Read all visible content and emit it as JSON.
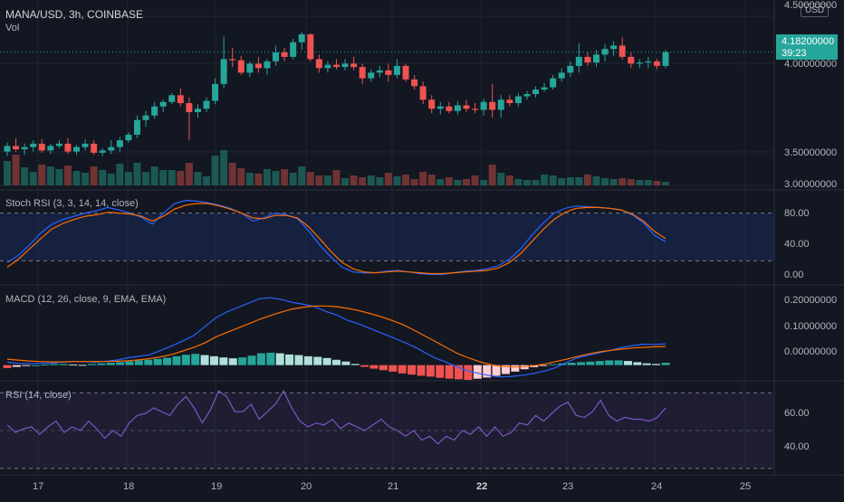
{
  "header": {
    "title": "MANA/USD, 3h, COINBASE",
    "vol_label": "Vol",
    "currency": "USD"
  },
  "price_label": {
    "value": "4.18200000",
    "countdown": "39:23"
  },
  "colors": {
    "background": "#131722",
    "up": "#26a69a",
    "down": "#ef5350",
    "stoch_k": "#2962ff",
    "stoch_d": "#ff6d00",
    "macd_line": "#2962ff",
    "signal_line": "#ff6d00",
    "rsi_line": "#7e57c2"
  },
  "panes": {
    "stoch": {
      "label": "Stoch RSI (3, 3, 14, 14, close)",
      "ticks": [
        "80.00",
        "40.00",
        "0.00"
      ]
    },
    "macd": {
      "label": "MACD (12, 26, close, 9, EMA, EMA)",
      "ticks": [
        "0.20000000",
        "0.10000000",
        "0.00000000"
      ]
    },
    "rsi": {
      "label": "RSI (14, close)",
      "ticks": [
        "60.00",
        "40.00"
      ]
    }
  },
  "price_axis": {
    "ticks": [
      "4.50000000",
      "4.00000000",
      "3.50000000",
      "3.00000000"
    ]
  },
  "x_axis": {
    "ticks": [
      "17",
      "18",
      "19",
      "20",
      "21",
      "22",
      "23",
      "24",
      "25"
    ],
    "bold": [
      "22"
    ]
  },
  "chart_data": [
    {
      "type": "candlestick",
      "ylim": [
        3.0,
        4.5
      ],
      "ohlc": [
        [
          3.3,
          3.38,
          3.26,
          3.35
        ],
        [
          3.35,
          3.42,
          3.3,
          3.32
        ],
        [
          3.32,
          3.37,
          3.27,
          3.34
        ],
        [
          3.34,
          3.4,
          3.3,
          3.37
        ],
        [
          3.37,
          3.41,
          3.29,
          3.31
        ],
        [
          3.31,
          3.37,
          3.28,
          3.35
        ],
        [
          3.35,
          3.4,
          3.33,
          3.37
        ],
        [
          3.37,
          3.42,
          3.28,
          3.3
        ],
        [
          3.3,
          3.36,
          3.27,
          3.34
        ],
        [
          3.34,
          3.41,
          3.31,
          3.37
        ],
        [
          3.37,
          3.4,
          3.27,
          3.29
        ],
        [
          3.29,
          3.33,
          3.26,
          3.31
        ],
        [
          3.31,
          3.4,
          3.28,
          3.34
        ],
        [
          3.34,
          3.43,
          3.3,
          3.4
        ],
        [
          3.4,
          3.47,
          3.38,
          3.45
        ],
        [
          3.45,
          3.62,
          3.42,
          3.58
        ],
        [
          3.58,
          3.66,
          3.52,
          3.62
        ],
        [
          3.62,
          3.74,
          3.59,
          3.7
        ],
        [
          3.7,
          3.76,
          3.65,
          3.74
        ],
        [
          3.74,
          3.82,
          3.72,
          3.8
        ],
        [
          3.8,
          3.86,
          3.7,
          3.73
        ],
        [
          3.73,
          3.78,
          3.4,
          3.65
        ],
        [
          3.65,
          3.72,
          3.6,
          3.68
        ],
        [
          3.68,
          3.78,
          3.65,
          3.75
        ],
        [
          3.75,
          3.95,
          3.72,
          3.9
        ],
        [
          3.9,
          4.32,
          3.86,
          4.12
        ],
        [
          4.12,
          4.22,
          4.05,
          4.11
        ],
        [
          4.11,
          4.15,
          3.98,
          4.0
        ],
        [
          4.0,
          4.1,
          3.96,
          4.08
        ],
        [
          4.08,
          4.14,
          4.0,
          4.04
        ],
        [
          4.04,
          4.12,
          3.98,
          4.1
        ],
        [
          4.1,
          4.24,
          4.06,
          4.18
        ],
        [
          4.18,
          4.22,
          4.1,
          4.14
        ],
        [
          4.14,
          4.3,
          4.12,
          4.27
        ],
        [
          4.27,
          4.36,
          4.2,
          4.34
        ],
        [
          4.34,
          4.35,
          4.1,
          4.12
        ],
        [
          4.12,
          4.16,
          4.0,
          4.04
        ],
        [
          4.04,
          4.1,
          4.0,
          4.07
        ],
        [
          4.07,
          4.12,
          4.03,
          4.05
        ],
        [
          4.05,
          4.12,
          4.02,
          4.08
        ],
        [
          4.08,
          4.14,
          4.02,
          4.05
        ],
        [
          4.05,
          4.08,
          3.9,
          3.95
        ],
        [
          3.95,
          4.03,
          3.92,
          4.0
        ],
        [
          4.0,
          4.06,
          3.96,
          4.02
        ],
        [
          4.02,
          4.08,
          3.92,
          3.98
        ],
        [
          3.98,
          4.12,
          3.95,
          4.06
        ],
        [
          4.06,
          4.08,
          3.92,
          3.94
        ],
        [
          3.94,
          3.98,
          3.85,
          3.88
        ],
        [
          3.88,
          3.92,
          3.72,
          3.76
        ],
        [
          3.76,
          3.8,
          3.64,
          3.68
        ],
        [
          3.68,
          3.74,
          3.63,
          3.7
        ],
        [
          3.7,
          3.74,
          3.64,
          3.66
        ],
        [
          3.66,
          3.75,
          3.63,
          3.71
        ],
        [
          3.71,
          3.76,
          3.65,
          3.68
        ],
        [
          3.68,
          3.73,
          3.64,
          3.67
        ],
        [
          3.67,
          3.77,
          3.62,
          3.74
        ],
        [
          3.74,
          3.9,
          3.6,
          3.67
        ],
        [
          3.67,
          3.8,
          3.6,
          3.76
        ],
        [
          3.76,
          3.8,
          3.7,
          3.73
        ],
        [
          3.73,
          3.82,
          3.7,
          3.79
        ],
        [
          3.79,
          3.84,
          3.76,
          3.81
        ],
        [
          3.81,
          3.88,
          3.78,
          3.85
        ],
        [
          3.85,
          3.91,
          3.83,
          3.87
        ],
        [
          3.87,
          3.98,
          3.85,
          3.95
        ],
        [
          3.95,
          4.04,
          3.92,
          4.0
        ],
        [
          4.0,
          4.1,
          3.96,
          4.06
        ],
        [
          4.06,
          4.26,
          4.0,
          4.14
        ],
        [
          4.14,
          4.18,
          4.06,
          4.09
        ],
        [
          4.09,
          4.2,
          4.05,
          4.16
        ],
        [
          4.16,
          4.25,
          4.1,
          4.21
        ],
        [
          4.21,
          4.28,
          4.15,
          4.24
        ],
        [
          4.24,
          4.31,
          4.12,
          4.14
        ],
        [
          4.14,
          4.18,
          4.04,
          4.08
        ],
        [
          4.08,
          4.12,
          4.04,
          4.09
        ],
        [
          4.09,
          4.14,
          4.04,
          4.1
        ],
        [
          4.1,
          4.12,
          4.03,
          4.06
        ],
        [
          4.06,
          4.2,
          4.04,
          4.182
        ]
      ]
    },
    {
      "type": "bar",
      "name": "Vol",
      "values": [
        27,
        34,
        20,
        15,
        23,
        21,
        18,
        22,
        16,
        14,
        21,
        17,
        13,
        24,
        15,
        25,
        15,
        21,
        17,
        17,
        16,
        25,
        15,
        10,
        33,
        39,
        25,
        19,
        14,
        13,
        18,
        16,
        18,
        14,
        21,
        15,
        11,
        11,
        17,
        8,
        11,
        9,
        11,
        9,
        14,
        10,
        12,
        7,
        15,
        12,
        7,
        9,
        6,
        7,
        11,
        6,
        23,
        14,
        11,
        7,
        6,
        6,
        12,
        11,
        8,
        9,
        9,
        12,
        10,
        8,
        7,
        8,
        7,
        6,
        6,
        5,
        4
      ]
    },
    {
      "type": "line",
      "ylim": [
        0,
        100
      ],
      "series": [
        {
          "values": [
            18,
            27,
            40,
            55,
            66,
            72,
            76,
            80,
            83,
            87,
            84,
            80,
            75,
            66,
            80,
            92,
            96,
            95,
            93,
            90,
            86,
            80,
            70,
            74,
            80,
            78,
            73,
            58,
            40,
            25,
            12,
            6,
            5,
            5,
            7,
            8,
            6,
            4,
            3,
            3,
            5,
            7,
            8,
            10,
            14,
            22,
            35,
            52,
            67,
            80,
            86,
            89,
            88,
            87,
            86,
            84,
            78,
            68,
            52,
            44
          ]
        },
        {
          "values": [
            12,
            22,
            35,
            48,
            60,
            67,
            72,
            76,
            78,
            81,
            80,
            79,
            76,
            70,
            76,
            85,
            90,
            92,
            92,
            89,
            85,
            80,
            74,
            73,
            77,
            77,
            74,
            63,
            48,
            32,
            18,
            10,
            6,
            5,
            6,
            7,
            6,
            5,
            4,
            4,
            5,
            6,
            7,
            8,
            11,
            18,
            29,
            44,
            59,
            72,
            81,
            86,
            87,
            87,
            86,
            84,
            79,
            70,
            57,
            48
          ]
        }
      ]
    },
    {
      "type": "bar",
      "values": [
        -0.01,
        -0.006,
        -0.003,
        0.0,
        0.002,
        0.004,
        0.004,
        0.002,
        0.001,
        0.004,
        0.006,
        0.008,
        0.01,
        0.013,
        0.016,
        0.018,
        0.021,
        0.025,
        0.03,
        0.035,
        0.038,
        0.034,
        0.03,
        0.026,
        0.023,
        0.026,
        0.032,
        0.04,
        0.042,
        0.04,
        0.036,
        0.034,
        0.03,
        0.028,
        0.024,
        0.018,
        0.012,
        0.004,
        -0.006,
        -0.012,
        -0.017,
        -0.022,
        -0.028,
        -0.032,
        -0.036,
        -0.039,
        -0.043,
        -0.046,
        -0.048,
        -0.05,
        -0.046,
        -0.042,
        -0.036,
        -0.03,
        -0.022,
        -0.014,
        -0.007,
        -0.002,
        0.003,
        0.006,
        0.008,
        0.01,
        0.012,
        0.014,
        0.016,
        0.016,
        0.014,
        0.01,
        0.006,
        0.004,
        0.008
      ]
    },
    {
      "type": "line",
      "ylim": [
        -0.05,
        0.25
      ],
      "series": [
        {
          "values": [
            0.01,
            0.006,
            0.005,
            0.006,
            0.007,
            0.01,
            0.012,
            0.012,
            0.01,
            0.013,
            0.017,
            0.025,
            0.03,
            0.035,
            0.05,
            0.065,
            0.082,
            0.1,
            0.13,
            0.16,
            0.18,
            0.195,
            0.21,
            0.225,
            0.228,
            0.222,
            0.212,
            0.206,
            0.198,
            0.182,
            0.17,
            0.152,
            0.14,
            0.125,
            0.11,
            0.095,
            0.08,
            0.064,
            0.044,
            0.024,
            0.01,
            -0.006,
            -0.02,
            -0.028,
            -0.036,
            -0.04,
            -0.038,
            -0.034,
            -0.028,
            -0.02,
            -0.008,
            0.01,
            0.025,
            0.034,
            0.042,
            0.05,
            0.06,
            0.066,
            0.071,
            0.07,
            0.072
          ]
        },
        {
          "values": [
            0.02,
            0.017,
            0.014,
            0.012,
            0.011,
            0.011,
            0.012,
            0.012,
            0.012,
            0.012,
            0.013,
            0.015,
            0.018,
            0.022,
            0.028,
            0.036,
            0.048,
            0.06,
            0.075,
            0.095,
            0.11,
            0.125,
            0.14,
            0.155,
            0.168,
            0.18,
            0.19,
            0.196,
            0.2,
            0.2,
            0.198,
            0.192,
            0.185,
            0.175,
            0.165,
            0.152,
            0.138,
            0.12,
            0.1,
            0.08,
            0.06,
            0.04,
            0.025,
            0.012,
            0.002,
            -0.004,
            -0.006,
            -0.005,
            -0.002,
            0.004,
            0.012,
            0.02,
            0.03,
            0.038,
            0.045,
            0.05,
            0.054,
            0.058,
            0.06,
            0.062,
            0.063
          ]
        }
      ]
    },
    {
      "type": "line",
      "ylim": [
        28,
        73
      ],
      "series": [
        {
          "values": [
            53,
            49,
            51,
            52,
            48,
            52,
            55,
            49,
            52,
            50,
            55,
            51,
            46,
            50,
            47,
            54,
            58,
            59,
            62,
            60,
            58,
            64,
            68,
            62,
            54,
            61,
            71,
            68,
            60,
            60,
            64,
            56,
            60,
            64,
            71,
            62,
            55,
            52,
            54,
            53,
            56,
            51,
            54,
            52,
            50,
            53,
            56,
            52,
            50,
            47,
            50,
            45,
            47,
            43,
            47,
            45,
            50,
            48,
            52,
            47,
            52,
            47,
            49,
            54,
            53,
            58,
            55,
            59,
            63,
            65,
            58,
            57,
            60,
            66,
            58,
            55,
            57,
            56,
            56,
            55,
            57,
            62
          ]
        }
      ]
    }
  ]
}
